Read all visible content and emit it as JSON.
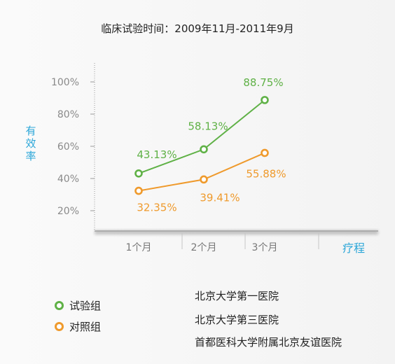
{
  "header": {
    "title": "临床试验时间：2009年11月-2011年9月"
  },
  "chart_data": {
    "type": "line",
    "categories": [
      "1个月",
      "2个月",
      "3个月"
    ],
    "xlabel": "疗程",
    "ylabel": "有效率",
    "ylim": [
      10,
      110
    ],
    "yticks": [
      "20%",
      "40%",
      "60%",
      "80%",
      "100%"
    ],
    "ytick_values": [
      20,
      40,
      60,
      80,
      100
    ],
    "series": [
      {
        "name": "试验组",
        "values": [
          43.13,
          58.13,
          88.75
        ],
        "labels": [
          "43.13%",
          "58.13%",
          "88.75%"
        ],
        "color": "#5fb146"
      },
      {
        "name": "对照组",
        "values": [
          32.35,
          39.41,
          55.88
        ],
        "labels": [
          "32.35%",
          "39.41%",
          "55.88%"
        ],
        "color": "#ef9a2c"
      }
    ],
    "axis_label_color": "#2aa6d8",
    "grid": false
  },
  "legend": [
    {
      "label": "试验组",
      "color": "#5fb146"
    },
    {
      "label": "对照组",
      "color": "#ef9a2c"
    }
  ],
  "hospitals": [
    "北京大学第一医院",
    "北京大学第三医院",
    "首都医科大学附属北京友谊医院"
  ]
}
